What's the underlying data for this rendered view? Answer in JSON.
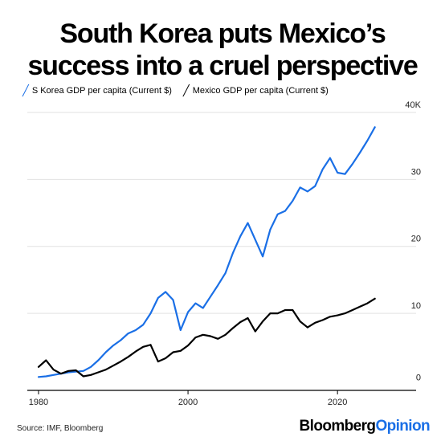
{
  "title_line1": "South Korea puts Mexico’s",
  "title_line2": "success into a cruel perspective",
  "legend": [
    {
      "label": "S Korea GDP per capita (Current $)",
      "color": "#1a6fe6"
    },
    {
      "label": "Mexico GDP per capita (Current $)",
      "color": "#000000"
    }
  ],
  "source": "Source: IMF, Bloomberg",
  "brand": {
    "part1": "Bloomberg",
    "part2": "Opinion",
    "part2_color": "#1a6fe6"
  },
  "chart_data": {
    "type": "line",
    "title": "South Korea puts Mexico’s success into a cruel perspective",
    "xlabel": "",
    "ylabel": "",
    "xlim": [
      1978.5,
      2026
    ],
    "ylim": [
      -1.5,
      40
    ],
    "x_ticks": [
      1980,
      2000,
      2020
    ],
    "x_tick_labels": [
      "1980",
      "2000",
      "2020"
    ],
    "y_ticks": [
      0,
      10,
      20,
      30,
      40
    ],
    "y_tick_labels": [
      "0",
      "10",
      "20",
      "30",
      "40K"
    ],
    "grid": true,
    "legend_position": "top-left",
    "series": [
      {
        "name": "S Korea GDP per capita (Current $)",
        "color": "#1a6fe6",
        "x": [
          1980,
          1981,
          1982,
          1983,
          1984,
          1985,
          1986,
          1987,
          1988,
          1989,
          1990,
          1991,
          1992,
          1993,
          1994,
          1995,
          1996,
          1997,
          1998,
          1999,
          2000,
          2001,
          2002,
          2003,
          2004,
          2005,
          2006,
          2007,
          2008,
          2009,
          2010,
          2011,
          2012,
          2013,
          2014,
          2015,
          2016,
          2017,
          2018,
          2019,
          2020,
          2021,
          2022,
          2023,
          2024,
          2025
        ],
        "values": [
          0.5,
          0.6,
          0.8,
          1.0,
          1.2,
          1.3,
          1.4,
          2.0,
          3.0,
          4.2,
          5.2,
          6.0,
          7.0,
          7.5,
          8.3,
          10.0,
          12.3,
          13.2,
          12.0,
          7.5,
          10.2,
          11.5,
          10.8,
          12.5,
          14.2,
          16.0,
          19.0,
          21.5,
          23.5,
          21.0,
          18.5,
          22.5,
          24.8,
          25.3,
          26.8,
          28.8,
          28.2,
          29.0,
          31.5,
          33.2,
          31.0,
          30.8,
          32.3,
          34.0,
          35.8,
          37.8
        ]
      },
      {
        "name": "Mexico GDP per capita (Current $)",
        "color": "#000000",
        "x": [
          1980,
          1981,
          1982,
          1983,
          1984,
          1985,
          1986,
          1987,
          1988,
          1989,
          1990,
          1991,
          1992,
          1993,
          1994,
          1995,
          1996,
          1997,
          1998,
          1999,
          2000,
          2001,
          2002,
          2003,
          2004,
          2005,
          2006,
          2007,
          2008,
          2009,
          2010,
          2011,
          2012,
          2013,
          2014,
          2015,
          2016,
          2017,
          2018,
          2019,
          2020,
          2021,
          2022,
          2023,
          2024,
          2025
        ],
        "values": [
          2.0,
          3.0,
          1.6,
          1.0,
          1.4,
          1.5,
          0.6,
          0.8,
          1.2,
          1.6,
          2.2,
          2.8,
          3.5,
          4.3,
          5.0,
          5.3,
          2.8,
          3.3,
          4.2,
          4.4,
          5.2,
          6.4,
          6.8,
          6.6,
          6.2,
          6.8,
          7.8,
          8.7,
          9.3,
          7.3,
          8.8,
          10.0,
          10.0,
          10.5,
          10.5,
          8.8,
          7.9,
          8.6,
          9.0,
          9.5,
          9.7,
          10.0,
          10.5,
          11.0,
          11.5,
          12.2
        ]
      }
    ]
  }
}
